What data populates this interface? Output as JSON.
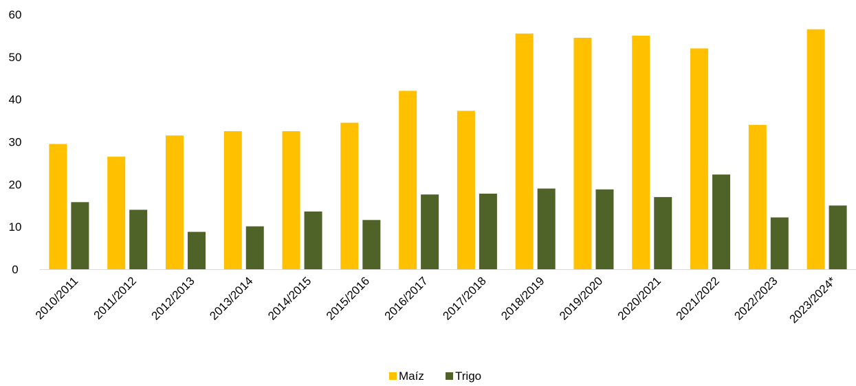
{
  "chart_data": {
    "type": "bar",
    "categories": [
      "2010/2011",
      "2011/2012",
      "2012/2013",
      "2013/2014",
      "2014/2015",
      "2015/2016",
      "2016/2017",
      "2017/2018",
      "2018/2019",
      "2019/2020",
      "2020/2021",
      "2021/2022",
      "2022/2023",
      "2023/2024*"
    ],
    "series": [
      {
        "name": "Maíz",
        "color": "#FFC000",
        "values": [
          29.5,
          26.5,
          31.5,
          32.5,
          32.5,
          34.5,
          42.0,
          37.3,
          55.5,
          54.5,
          55.0,
          52.0,
          34.0,
          56.5
        ]
      },
      {
        "name": "Trigo",
        "color": "#4F6228",
        "values": [
          15.8,
          14.0,
          8.8,
          10.1,
          13.6,
          11.6,
          17.6,
          17.8,
          19.0,
          18.8,
          17.0,
          22.3,
          12.2,
          15.0
        ]
      }
    ],
    "ylim": [
      0,
      60
    ],
    "yticks": [
      0,
      10,
      20,
      30,
      40,
      50,
      60
    ],
    "grid": false,
    "legend_position": "bottom-center",
    "title": "",
    "xlabel": "",
    "ylabel": ""
  }
}
